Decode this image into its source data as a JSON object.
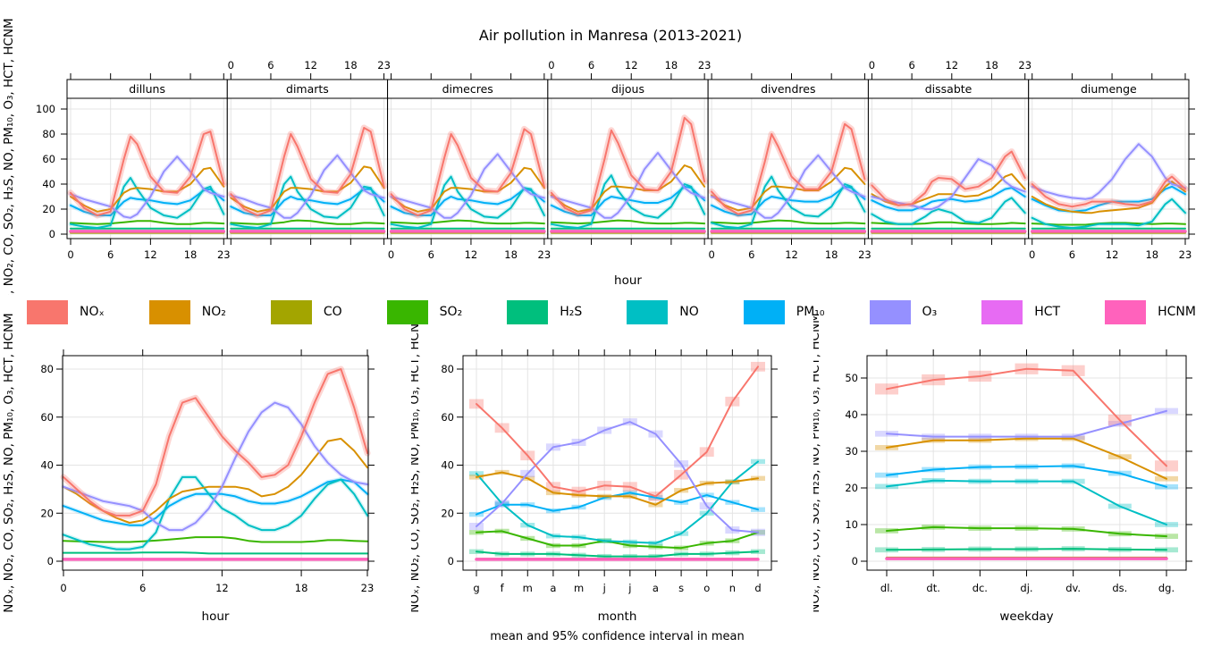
{
  "title": "Air pollution in Manresa (2013-2021)",
  "subtitle_note": "mean and 95% confidence interval in mean",
  "legend": {
    "items": [
      {
        "key": "NOx",
        "label": "NOₓ",
        "color": "#F8766D"
      },
      {
        "key": "NO2",
        "label": "NO₂",
        "color": "#D89000"
      },
      {
        "key": "CO",
        "label": "CO",
        "color": "#A3A500"
      },
      {
        "key": "SO2",
        "label": "SO₂",
        "color": "#39B600"
      },
      {
        "key": "H2S",
        "label": "H₂S",
        "color": "#00BF7D"
      },
      {
        "key": "NO",
        "label": "NO",
        "color": "#00BFC4"
      },
      {
        "key": "PM10",
        "label": "PM₁₀",
        "color": "#00B0F6"
      },
      {
        "key": "O3",
        "label": "O₃",
        "color": "#9590FF"
      },
      {
        "key": "HCT",
        "label": "HCT",
        "color": "#E76BF3"
      },
      {
        "key": "HCNM",
        "label": "HCNM",
        "color": "#FF62BC"
      }
    ]
  },
  "ylabel": "NOₓ, NO₂, CO, SO₂, H₂S, NO, PM₁₀, O₃, HCT, HCNM",
  "chart_data": [
    {
      "id": "hour_by_weekday",
      "type": "line",
      "xlabel": "hour",
      "facet_labels": [
        "dilluns",
        "dimarts",
        "dimecres",
        "dijous",
        "divendres",
        "dissabte",
        "diumenge"
      ],
      "x": [
        0,
        2,
        4,
        6,
        8,
        9,
        10,
        12,
        14,
        16,
        18,
        20,
        21,
        23
      ],
      "xticks": [
        0,
        6,
        12,
        18,
        23
      ],
      "ylim": [
        0,
        100
      ],
      "yticks": [
        0,
        20,
        40,
        60,
        80,
        100
      ],
      "const_series": {
        "CO": 1,
        "H2S": 4.5,
        "HCT": 1.2,
        "HCNM": 2.2
      },
      "facets": {
        "dilluns": {
          "NOx": [
            33,
            21,
            15,
            18,
            60,
            78,
            72,
            46,
            34,
            33,
            46,
            80,
            82,
            40
          ],
          "NO2": [
            30,
            23,
            18,
            20,
            33,
            36,
            37,
            36,
            34,
            34,
            40,
            52,
            53,
            38
          ],
          "NO": [
            8,
            6,
            5,
            7,
            38,
            45,
            36,
            21,
            15,
            13,
            20,
            36,
            38,
            16
          ],
          "PM10": [
            23,
            18,
            15,
            15,
            26,
            29,
            28,
            27,
            25,
            24,
            27,
            35,
            36,
            27
          ],
          "O3": [
            32,
            28,
            25,
            22,
            14,
            13,
            16,
            30,
            50,
            62,
            50,
            36,
            33,
            30
          ],
          "SO2": [
            9,
            8.5,
            8,
            8.5,
            9.5,
            10,
            10.5,
            10.5,
            9,
            8,
            8,
            9,
            9,
            8.5
          ]
        },
        "dimarts": {
          "NOx": [
            32,
            20,
            15,
            19,
            62,
            80,
            70,
            44,
            34,
            33,
            48,
            85,
            82,
            38
          ],
          "NO2": [
            29,
            22,
            18,
            20,
            34,
            37,
            37,
            36,
            34,
            34,
            41,
            54,
            53,
            37
          ],
          "NO": [
            8,
            6,
            5,
            8,
            40,
            46,
            34,
            20,
            14,
            13,
            21,
            38,
            37,
            15
          ],
          "PM10": [
            22,
            17,
            15,
            15,
            27,
            30,
            28,
            27,
            25,
            24,
            28,
            36,
            36,
            26
          ],
          "O3": [
            31,
            28,
            24,
            21,
            13,
            13,
            17,
            31,
            51,
            63,
            49,
            35,
            32,
            29
          ],
          "SO2": [
            9,
            8.5,
            8,
            8.5,
            9.5,
            10.5,
            11,
            10.5,
            9,
            8,
            8,
            9,
            9,
            8.5
          ]
        },
        "dimecres": {
          "NOx": [
            32,
            20,
            15,
            19,
            61,
            80,
            71,
            45,
            35,
            34,
            49,
            84,
            80,
            38
          ],
          "NO2": [
            30,
            22,
            18,
            20,
            34,
            37,
            37,
            36,
            34,
            34,
            41,
            53,
            52,
            37
          ],
          "NO": [
            8,
            6,
            5,
            8,
            39,
            46,
            34,
            20,
            14,
            13,
            21,
            37,
            36,
            15
          ],
          "PM10": [
            22,
            17,
            15,
            15,
            27,
            30,
            28,
            27,
            25,
            24,
            28,
            36,
            35,
            26
          ],
          "O3": [
            30,
            27,
            24,
            21,
            13,
            13,
            17,
            31,
            52,
            64,
            50,
            36,
            32,
            29
          ],
          "SO2": [
            9.5,
            9,
            8.5,
            9,
            10,
            10.5,
            11,
            10.5,
            9,
            8.5,
            8.5,
            9,
            9,
            8.5
          ]
        },
        "dijous": {
          "NOx": [
            33,
            21,
            16,
            19,
            60,
            83,
            73,
            47,
            36,
            35,
            50,
            93,
            88,
            42
          ],
          "NO2": [
            31,
            23,
            18,
            20,
            34,
            38,
            38,
            37,
            35,
            35,
            42,
            55,
            53,
            38
          ],
          "NO": [
            8,
            6,
            5,
            8,
            40,
            47,
            35,
            21,
            15,
            13,
            22,
            40,
            38,
            16
          ],
          "PM10": [
            23,
            18,
            15,
            15,
            27,
            30,
            29,
            27,
            25,
            25,
            29,
            38,
            37,
            27
          ],
          "O3": [
            30,
            27,
            24,
            21,
            13,
            13,
            17,
            31,
            52,
            65,
            51,
            37,
            33,
            29
          ],
          "SO2": [
            9.5,
            9,
            8.5,
            9,
            10,
            10.5,
            11,
            10.5,
            9,
            8.5,
            8.5,
            9,
            9,
            8.5
          ]
        },
        "divendres": {
          "NOx": [
            34,
            22,
            16,
            19,
            58,
            80,
            70,
            46,
            36,
            36,
            50,
            88,
            84,
            44
          ],
          "NO2": [
            31,
            23,
            19,
            21,
            34,
            38,
            38,
            37,
            35,
            35,
            42,
            53,
            52,
            40
          ],
          "NO": [
            9,
            6,
            5,
            8,
            38,
            46,
            35,
            21,
            15,
            14,
            22,
            40,
            38,
            18
          ],
          "PM10": [
            23,
            18,
            15,
            16,
            27,
            30,
            29,
            27,
            26,
            26,
            30,
            38,
            37,
            28
          ],
          "O3": [
            30,
            27,
            24,
            21,
            13,
            13,
            17,
            31,
            51,
            63,
            50,
            37,
            34,
            30
          ],
          "SO2": [
            9.5,
            9,
            8.5,
            9,
            10,
            10.5,
            11,
            10.5,
            9,
            8.5,
            8.5,
            9,
            9,
            8.5
          ]
        },
        "dissabte": {
          "NOx": [
            39,
            28,
            23,
            24,
            33,
            42,
            45,
            44,
            36,
            38,
            45,
            62,
            66,
            45
          ],
          "NO2": [
            32,
            26,
            23,
            24,
            28,
            30,
            32,
            32,
            30,
            31,
            36,
            46,
            48,
            36
          ],
          "NO": [
            16,
            10,
            8,
            8,
            14,
            18,
            20,
            17,
            10,
            9,
            13,
            26,
            29,
            17
          ],
          "PM10": [
            27,
            22,
            19,
            19,
            23,
            26,
            27,
            28,
            26,
            27,
            30,
            36,
            37,
            30
          ],
          "O3": [
            30,
            27,
            25,
            23,
            20,
            20,
            22,
            30,
            45,
            60,
            55,
            42,
            38,
            34
          ],
          "SO2": [
            9,
            8.5,
            8,
            8,
            8.5,
            9,
            9.5,
            9.5,
            8.5,
            8,
            8,
            8.5,
            9,
            8.5
          ]
        },
        "diumenge": {
          "NOx": [
            40,
            30,
            24,
            22,
            24,
            26,
            26,
            26,
            24,
            23,
            26,
            42,
            46,
            36
          ],
          "NO2": [
            30,
            24,
            20,
            18,
            17,
            17,
            18,
            19,
            20,
            21,
            25,
            38,
            42,
            34
          ],
          "NO": [
            13,
            8,
            6,
            5,
            6,
            7,
            8,
            8,
            8,
            7,
            10,
            24,
            28,
            17
          ],
          "PM10": [
            28,
            23,
            19,
            18,
            19,
            21,
            23,
            26,
            26,
            26,
            28,
            36,
            38,
            32
          ],
          "O3": [
            38,
            34,
            31,
            29,
            28,
            29,
            33,
            44,
            60,
            72,
            62,
            45,
            40,
            37
          ],
          "SO2": [
            8.5,
            8,
            7.5,
            7.5,
            7.5,
            8,
            8.5,
            9,
            9,
            8.5,
            8,
            8.5,
            8.5,
            8
          ]
        }
      }
    },
    {
      "id": "hour",
      "type": "line",
      "xlabel": "hour",
      "x": [
        0,
        1,
        2,
        3,
        4,
        5,
        6,
        7,
        8,
        9,
        10,
        11,
        12,
        13,
        14,
        15,
        16,
        17,
        18,
        19,
        20,
        21,
        22,
        23
      ],
      "xticks": [
        0,
        6,
        12,
        18,
        23
      ],
      "ylim": [
        0,
        85
      ],
      "yticks": [
        0,
        20,
        40,
        60,
        80
      ],
      "series": {
        "NOx": [
          35,
          30,
          25,
          21,
          19,
          19,
          21,
          32,
          52,
          66,
          68,
          60,
          52,
          46,
          41,
          35,
          36,
          40,
          52,
          66,
          78,
          80,
          64,
          45
        ],
        "NO2": [
          31,
          28,
          24,
          21,
          18,
          16,
          17,
          21,
          26,
          29,
          30,
          31,
          31,
          31,
          30,
          27,
          28,
          31,
          36,
          43,
          50,
          51,
          46,
          39
        ],
        "CO": 0.9,
        "SO2": [
          8.5,
          8.3,
          8.2,
          8,
          8,
          8,
          8.3,
          8.6,
          9,
          9.5,
          10,
          10,
          10,
          9.5,
          8.5,
          8,
          8,
          8,
          8,
          8.3,
          8.8,
          8.8,
          8.5,
          8.3
        ],
        "H2S": [
          3.5,
          3.5,
          3.5,
          3.5,
          3.5,
          3.5,
          3.6,
          3.6,
          3.6,
          3.6,
          3.5,
          3.2,
          3.2,
          3.2,
          3.2,
          3.2,
          3.2,
          3.2,
          3.2,
          3.2,
          3.2,
          3.2,
          3.2,
          3.2
        ],
        "NO": [
          11,
          9,
          7,
          6,
          5,
          5,
          6,
          12,
          26,
          35,
          35,
          28,
          22,
          19,
          15,
          13,
          13,
          15,
          19,
          26,
          32,
          34,
          28,
          19
        ],
        "PM10": [
          23,
          21,
          19,
          17,
          16,
          15,
          15,
          18,
          23,
          26,
          28,
          28,
          28,
          27,
          25,
          24,
          24,
          25,
          27,
          30,
          33,
          34,
          33,
          28
        ],
        "O3": [
          31,
          29,
          27,
          25,
          24,
          23,
          21,
          16,
          13,
          13,
          16,
          22,
          31,
          43,
          54,
          62,
          66,
          64,
          57,
          48,
          41,
          36,
          33,
          32
        ],
        "HCT": 0.7,
        "HCNM": 0.8
      }
    },
    {
      "id": "month",
      "type": "line",
      "xlabel": "month",
      "categories": [
        "g",
        "f",
        "m",
        "a",
        "m",
        "j",
        "j",
        "a",
        "s",
        "o",
        "n",
        "d"
      ],
      "ylim": [
        0,
        85
      ],
      "yticks": [
        0,
        20,
        40,
        60,
        80
      ],
      "ci": {
        "NOx": 2,
        "O3": 1.5,
        "default": 1
      },
      "series": {
        "NOx": [
          65.5,
          55.5,
          44,
          31,
          29,
          31.5,
          31,
          27,
          36,
          45.5,
          66.5,
          81
        ],
        "NO2": [
          35,
          37,
          34.5,
          28.5,
          27.5,
          27,
          27,
          23.5,
          29.5,
          32.5,
          33,
          34.5
        ],
        "CO": 1,
        "SO2": [
          12,
          12.5,
          9.5,
          6.5,
          6.5,
          8.5,
          6.5,
          6,
          5.5,
          7.5,
          8.5,
          12
        ],
        "H2S": [
          4,
          3,
          3,
          3,
          2.5,
          2,
          2,
          2,
          3,
          3,
          3.5,
          4
        ],
        "NO": [
          36.5,
          24,
          15,
          10.5,
          10,
          8.5,
          8,
          7.5,
          11.5,
          20,
          33,
          41.5
        ],
        "PM10": [
          19.5,
          23.5,
          23.5,
          21,
          22.5,
          26.5,
          28.5,
          26.5,
          24.5,
          27.5,
          24.5,
          21.5
        ],
        "O3": [
          14.5,
          24,
          36.5,
          47.5,
          49.5,
          54.5,
          58,
          53,
          40.5,
          23,
          13,
          12
        ],
        "HCT": 0.7,
        "HCNM": 0.8
      }
    },
    {
      "id": "weekday",
      "type": "line",
      "xlabel": "weekday",
      "categories": [
        "dl.",
        "dt.",
        "dc.",
        "dj.",
        "dv.",
        "ds.",
        "dg."
      ],
      "ylim": [
        0,
        57
      ],
      "yticks": [
        0,
        10,
        20,
        30,
        40,
        50
      ],
      "ci": {
        "NOx": 1.5,
        "O3": 0.8,
        "default": 0.7
      },
      "series": {
        "NOx": [
          47,
          49.5,
          50.5,
          52.5,
          52,
          38.5,
          26
        ],
        "NO2": [
          31,
          33,
          33,
          33.5,
          33.5,
          28.5,
          22.5
        ],
        "CO": 1,
        "SO2": [
          8.3,
          9.3,
          9,
          9,
          8.8,
          7.5,
          6.8
        ],
        "H2S": [
          3.1,
          3.2,
          3.3,
          3.3,
          3.4,
          3.2,
          3.1
        ],
        "NO": [
          20.4,
          22,
          21.8,
          21.8,
          21.8,
          15,
          10
        ],
        "PM10": [
          23.5,
          25,
          25.7,
          25.8,
          26,
          24,
          20.3
        ],
        "O3": [
          34.8,
          34,
          34,
          34,
          34,
          37.5,
          41
        ],
        "HCT": 0.6,
        "HCNM": 0.7
      }
    }
  ]
}
